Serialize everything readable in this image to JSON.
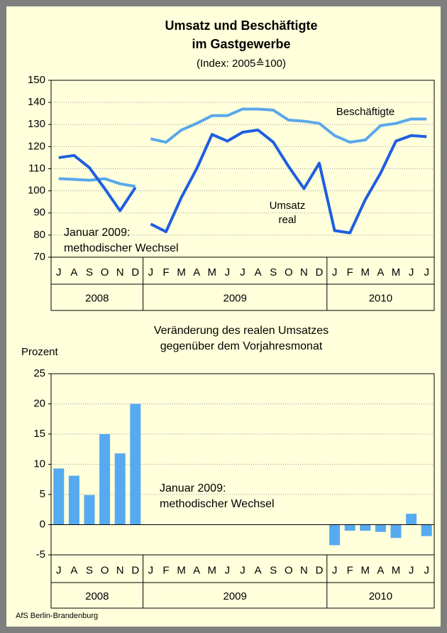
{
  "source": "AfS Berlin-Brandenburg",
  "chart_data": [
    {
      "type": "line",
      "title": [
        "Umsatz und Beschäftigte",
        "im Gastgewerbe"
      ],
      "subtitle": "(Index: 2005≙100)",
      "groups": [
        {
          "label": "2008",
          "categories": [
            "J",
            "A",
            "S",
            "O",
            "N",
            "D"
          ]
        },
        {
          "label": "2009",
          "categories": [
            "J",
            "F",
            "M",
            "A",
            "M",
            "J",
            "J",
            "A",
            "S",
            "O",
            "N",
            "D"
          ]
        },
        {
          "label": "2010",
          "categories": [
            "J",
            "F",
            "M",
            "A",
            "M",
            "J",
            "J"
          ]
        }
      ],
      "series": [
        {
          "name": "Beschäftigte",
          "color": "#5aa7ea",
          "values": [
            105.5,
            105.2,
            104.8,
            105.5,
            103.2,
            102,
            123.5,
            122,
            127.5,
            130.5,
            134,
            134,
            137,
            137,
            136.5,
            132,
            131.5,
            130.5,
            125,
            122,
            123,
            129.5,
            130.5,
            132.5,
            132.5
          ]
        },
        {
          "name": "Umsatz real",
          "color": "#1f5ee0",
          "values": [
            115,
            116,
            110.5,
            101,
            91,
            101.5,
            85,
            81.5,
            97,
            110,
            125.5,
            122.5,
            126.5,
            127.5,
            122,
            111,
            101,
            112.5,
            82,
            81,
            96,
            108,
            122.5,
            125,
            124.5
          ]
        }
      ],
      "breaks_after": [
        5
      ],
      "note": [
        "Januar 2009:",
        "methodischer Wechsel"
      ],
      "ylim": [
        70,
        150
      ],
      "yticks": [
        70,
        80,
        90,
        100,
        110,
        120,
        130,
        140,
        150
      ],
      "grid": true
    },
    {
      "type": "bar",
      "title": [
        "Veränderung des realen Umsatzes",
        "gegenüber dem Vorjahresmonat"
      ],
      "y_label": "Prozent",
      "groups": [
        {
          "label": "2008",
          "categories": [
            "J",
            "A",
            "S",
            "O",
            "N",
            "D"
          ]
        },
        {
          "label": "2009",
          "categories": [
            "J",
            "F",
            "M",
            "A",
            "M",
            "J",
            "J",
            "A",
            "S",
            "O",
            "N",
            "D"
          ]
        },
        {
          "label": "2010",
          "categories": [
            "J",
            "F",
            "M",
            "A",
            "M",
            "J",
            "J"
          ]
        }
      ],
      "color": "#55aaf0",
      "values": [
        9.3,
        8.1,
        4.9,
        15,
        11.8,
        20,
        null,
        null,
        null,
        null,
        null,
        null,
        null,
        null,
        null,
        null,
        null,
        null,
        -3.4,
        -1,
        -1,
        -1.2,
        -2.2,
        1.8,
        -1.9
      ],
      "note": [
        "Januar 2009:",
        "methodischer Wechsel"
      ],
      "ylim": [
        -5,
        25
      ],
      "yticks": [
        -5,
        0,
        5,
        10,
        15,
        20,
        25
      ],
      "grid": true
    }
  ]
}
